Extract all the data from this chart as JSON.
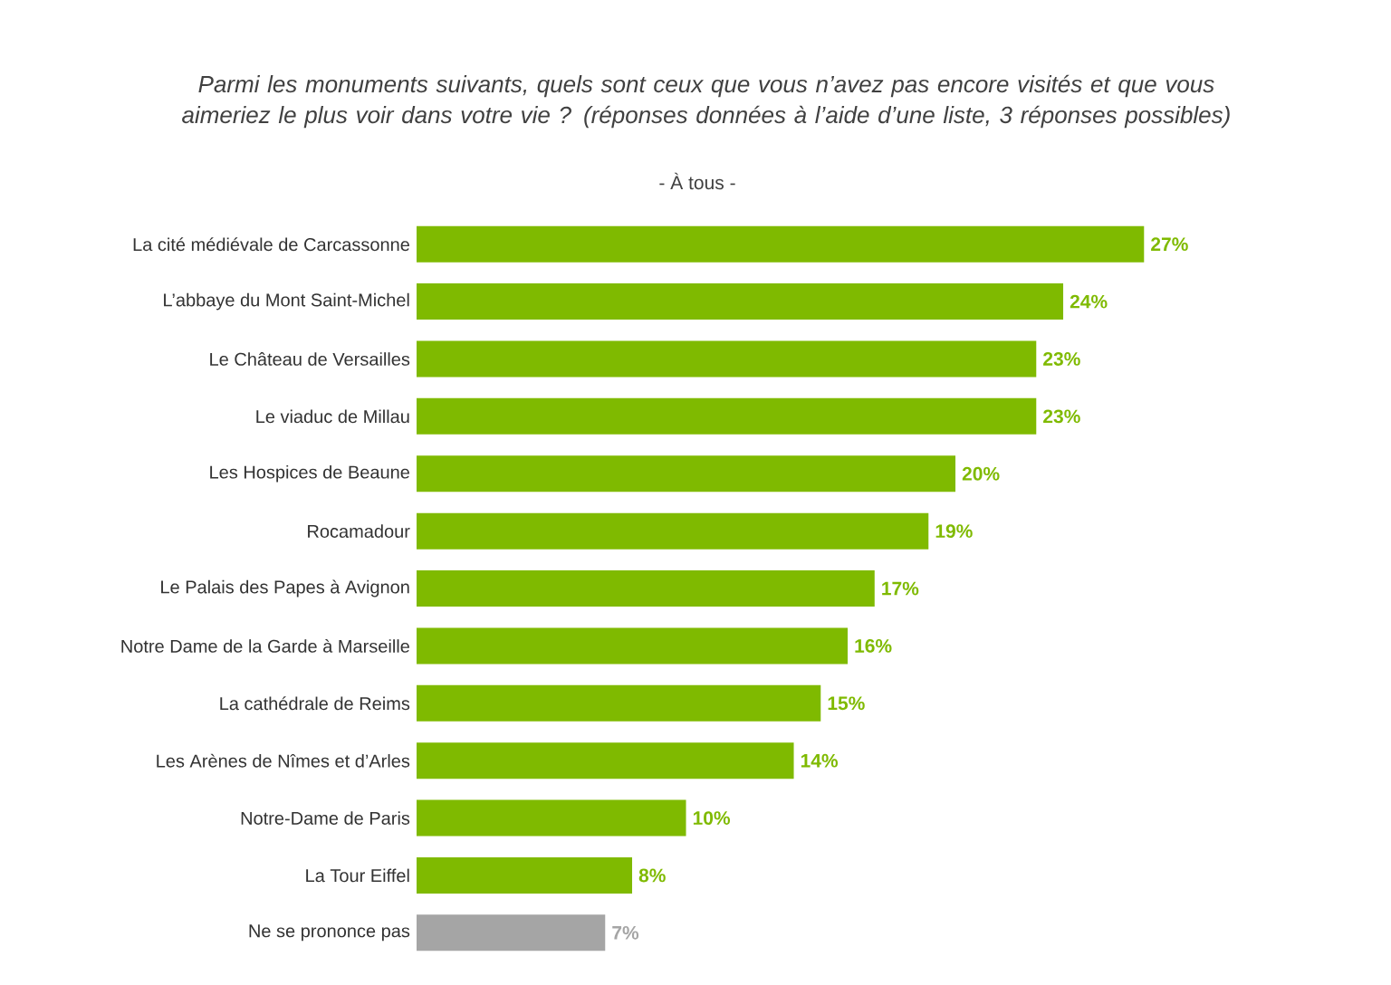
{
  "chart_data": {
    "type": "bar",
    "orientation": "horizontal",
    "title": "Parmi les monuments suivants, quels sont ceux que vous n’avez pas encore visités et que vous aimeriez le plus voir dans votre vie ? (réponses données à l’aide d’une liste, 3 réponses possibles)",
    "subtitle": "- À tous -",
    "categories": [
      "La cité médiévale de Carcassonne",
      "L’abbaye du Mont Saint-Michel",
      "Le Château de Versailles",
      "Le viaduc de Millau",
      "Les Hospices de Beaune",
      "Rocamadour",
      "Le Palais des Papes à Avignon",
      "Notre Dame de la Garde à Marseille",
      "La cathédrale de Reims",
      "Les Arènes de Nîmes et d’Arles",
      "Notre-Dame de Paris",
      "La Tour Eiffel",
      "Ne se prononce  pas"
    ],
    "values": [
      27,
      24,
      23,
      23,
      20,
      19,
      17,
      16,
      15,
      14,
      10,
      8,
      7
    ],
    "value_labels": [
      "27%",
      "24%",
      "23%",
      "23%",
      "20%",
      "19%",
      "17%",
      "16%",
      "15%",
      "14%",
      "10%",
      "8%",
      "7%"
    ],
    "colors": [
      "#7fba00",
      "#7fba00",
      "#7fba00",
      "#7fba00",
      "#7fba00",
      "#7fba00",
      "#7fba00",
      "#7fba00",
      "#7fba00",
      "#7fba00",
      "#7fba00",
      "#7fba00",
      "#a5a5a5"
    ],
    "tick_labels": "y"
  }
}
